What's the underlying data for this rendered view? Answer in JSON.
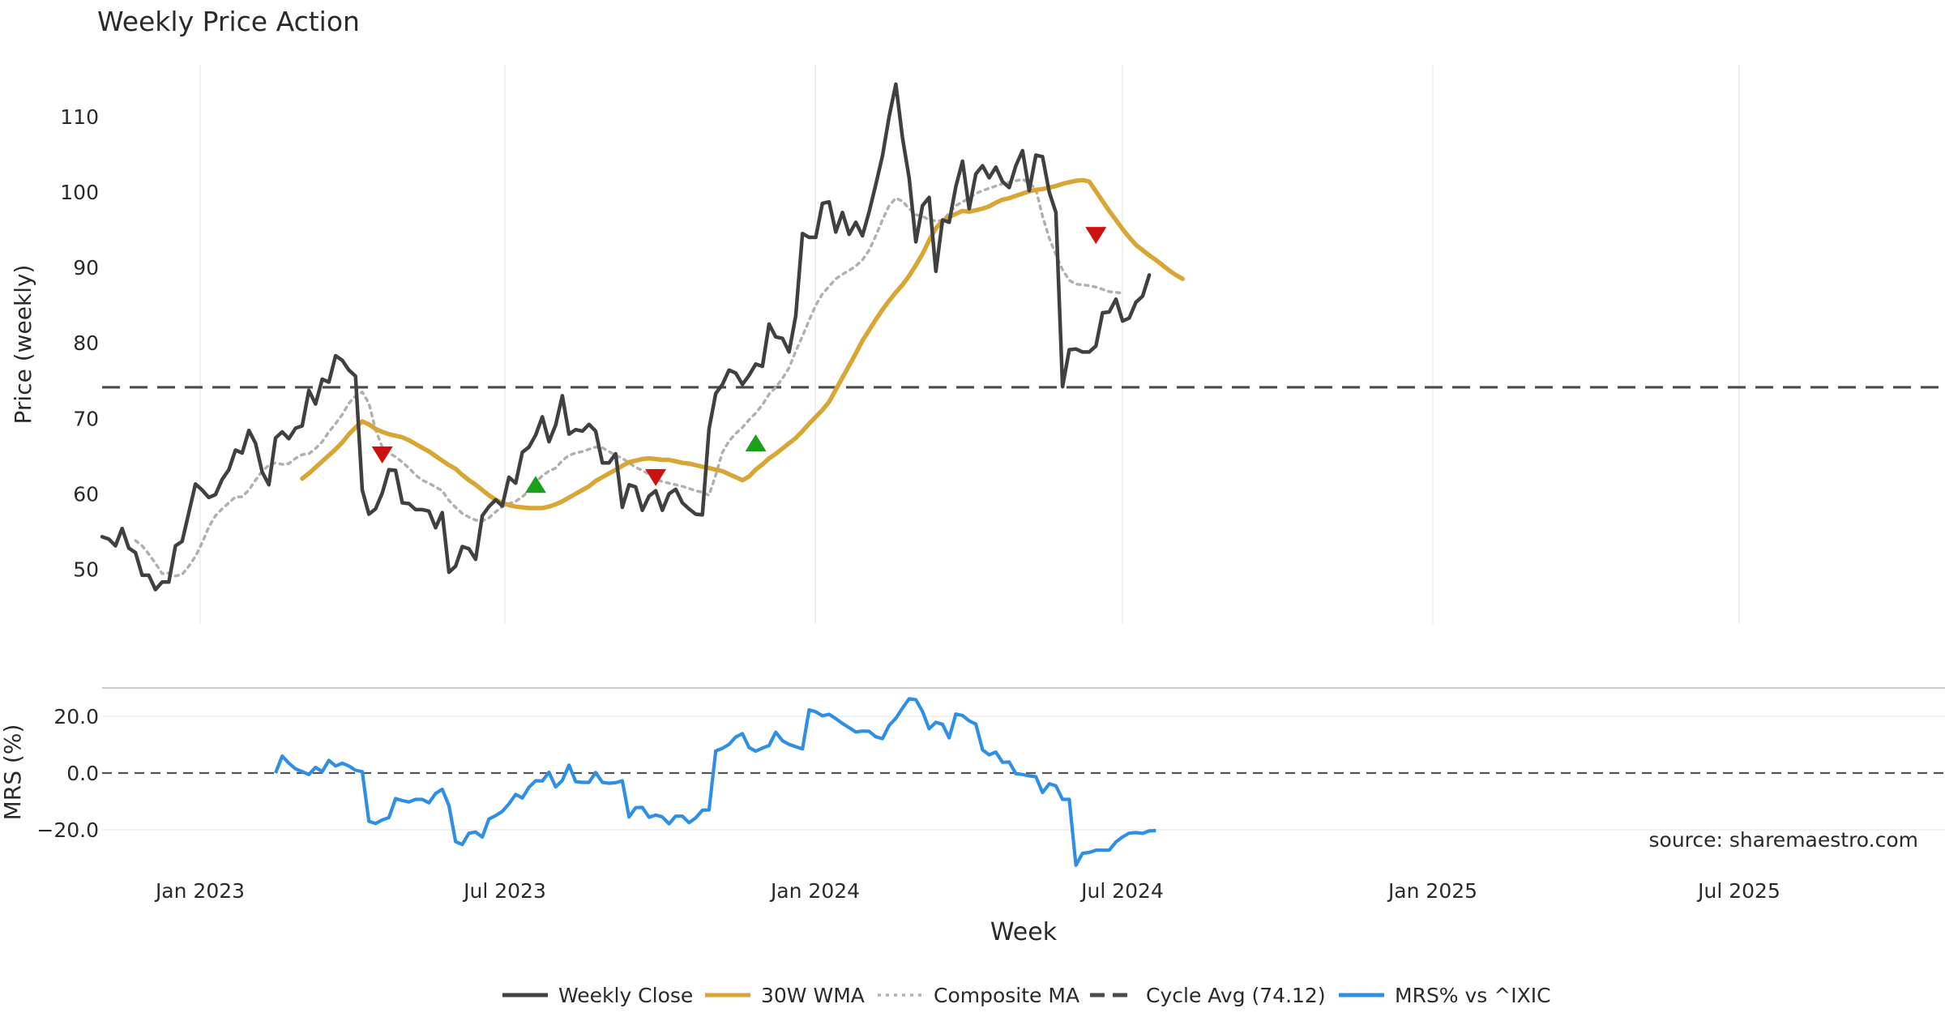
{
  "chart_data": {
    "type": "line",
    "title": "Weekly Price Action",
    "xlabel": "Week",
    "x_ticks": [
      "Jan 2023",
      "Jul 2023",
      "Jan 2024",
      "Jul 2024",
      "Jan 2025",
      "Jul 2025"
    ],
    "price_panel": {
      "ylabel": "Price (weekly)",
      "ylim": [
        43,
        118
      ],
      "y_ticks": [
        50,
        60,
        70,
        80,
        90,
        100,
        110
      ],
      "grid": "x",
      "series": [
        {
          "name": "Weekly Close",
          "color": "#404040",
          "style": "solid",
          "values": [
            54.3,
            54.0,
            53.1,
            55.4,
            52.8,
            52.2,
            49.2,
            49.2,
            47.3,
            48.3,
            48.3,
            53.1,
            53.7,
            57.5,
            61.3,
            60.5,
            59.5,
            59.9,
            61.9,
            63.2,
            65.8,
            65.4,
            68.4,
            66.7,
            62.9,
            61.2,
            67.4,
            68.2,
            67.3,
            68.7,
            69.0,
            73.7,
            71.9,
            75.2,
            74.8,
            78.3,
            77.7,
            76.4,
            75.6,
            60.5,
            57.3,
            58.0,
            60.1,
            63.2,
            63.1,
            58.8,
            58.7,
            57.9,
            57.9,
            57.7,
            55.5,
            57.5,
            49.6,
            50.4,
            53.0,
            52.7,
            51.3,
            57.1,
            58.3,
            59.2,
            58.4,
            62.2,
            61.4,
            65.5,
            66.2,
            67.8,
            70.2,
            66.9,
            69.1,
            73.0,
            67.9,
            68.5,
            68.3,
            69.2,
            68.3,
            64.1,
            64.1,
            65.3,
            58.2,
            61.2,
            60.9,
            57.8,
            59.7,
            60.4,
            57.8,
            60.0,
            60.6,
            58.8,
            58.0,
            57.3,
            57.2,
            68.6,
            73.3,
            74.5,
            76.4,
            76.0,
            74.5,
            75.7,
            77.2,
            76.9,
            82.5,
            80.8,
            80.6,
            78.8,
            83.6,
            94.5,
            94.0,
            94.0,
            98.5,
            98.7,
            94.7,
            97.3,
            94.4,
            96.0,
            94.2,
            97.4,
            101.0,
            104.8,
            110.0,
            114.3,
            107.2,
            101.9,
            93.4,
            98.2,
            99.3,
            89.5,
            96.3,
            96.0,
            100.7,
            104.1,
            97.8,
            102.4,
            103.5,
            101.9,
            103.3,
            101.4,
            100.6,
            103.5,
            105.5,
            100.2,
            104.9,
            104.7,
            100.0,
            97.3,
            74.2,
            79.1,
            79.2,
            78.8,
            78.8,
            79.6,
            84.0,
            84.1,
            85.8,
            82.9,
            83.3,
            85.4,
            86.2,
            89.0
          ]
        },
        {
          "name": "30W WMA",
          "color": "#d8a634",
          "style": "solid",
          "start_week": 30,
          "values": [
            62.0,
            62.7,
            63.5,
            64.3,
            65.1,
            65.9,
            66.8,
            67.9,
            68.8,
            69.6,
            69.2,
            68.6,
            68.2,
            67.9,
            67.7,
            67.5,
            67.1,
            66.6,
            66.1,
            65.6,
            65.0,
            64.4,
            63.8,
            63.3,
            62.5,
            61.8,
            61.2,
            60.5,
            59.8,
            59.2,
            58.8,
            58.5,
            58.3,
            58.2,
            58.1,
            58.1,
            58.1,
            58.3,
            58.6,
            59.0,
            59.5,
            60.0,
            60.5,
            61.0,
            61.7,
            62.2,
            62.7,
            63.2,
            63.7,
            64.2,
            64.4,
            64.6,
            64.7,
            64.6,
            64.5,
            64.5,
            64.3,
            64.1,
            64.0,
            63.8,
            63.6,
            63.4,
            63.2,
            63.0,
            62.6,
            62.2,
            61.8,
            62.3,
            63.2,
            63.9,
            64.7,
            65.3,
            66.0,
            66.7,
            67.4,
            68.3,
            69.3,
            70.2,
            71.1,
            72.2,
            73.8,
            75.4,
            77.0,
            78.6,
            80.3,
            81.7,
            83.1,
            84.4,
            85.6,
            86.7,
            87.7,
            88.9,
            90.3,
            91.8,
            93.6,
            95.2,
            96.2,
            96.7,
            97.1,
            97.5,
            97.4,
            97.6,
            97.8,
            98.1,
            98.6,
            99.0,
            99.2,
            99.5,
            99.8,
            100.1,
            100.3,
            100.4,
            100.6,
            100.8,
            101.1,
            101.3,
            101.5,
            101.6,
            101.4,
            100.1,
            98.8,
            97.5,
            96.3,
            95.1,
            94.0,
            93.0,
            92.3,
            91.6,
            91.0,
            90.3,
            89.6,
            89.0,
            88.5
          ]
        },
        {
          "name": "Composite MA",
          "color": "#b3afaf",
          "style": "dotted",
          "start_week": 5,
          "values": [
            53.8,
            53.1,
            52.0,
            50.8,
            49.4,
            49.5,
            49.1,
            49.3,
            50.4,
            51.7,
            53.5,
            55.6,
            57.1,
            58.0,
            58.8,
            59.6,
            59.6,
            60.5,
            61.8,
            63.0,
            63.8,
            64.1,
            63.9,
            64.0,
            64.7,
            65.2,
            65.3,
            66.0,
            66.9,
            68.2,
            69.3,
            70.5,
            72.0,
            73.0,
            73.5,
            72.0,
            68.5,
            66.2,
            65.4,
            64.9,
            64.2,
            63.4,
            62.5,
            61.8,
            61.4,
            60.9,
            60.4,
            59.1,
            58.2,
            57.4,
            56.9,
            56.5,
            56.4,
            56.8,
            57.6,
            58.3,
            58.7,
            59.0,
            59.6,
            60.4,
            61.5,
            62.4,
            63.0,
            63.4,
            64.4,
            65.1,
            65.4,
            65.6,
            65.9,
            66.2,
            66.1,
            65.6,
            65.1,
            64.7,
            64.1,
            63.5,
            63.1,
            62.6,
            62.0,
            61.6,
            61.4,
            61.2,
            61.0,
            60.7,
            60.4,
            60.2,
            59.8,
            62.5,
            65.5,
            67.0,
            68.0,
            68.8,
            69.8,
            70.7,
            71.8,
            73.2,
            74.1,
            75.3,
            76.7,
            78.9,
            80.9,
            83.0,
            85.0,
            86.5,
            87.5,
            88.5,
            89.1,
            89.6,
            90.2,
            91.0,
            92.3,
            94.2,
            96.3,
            98.2,
            99.2,
            98.8,
            97.8,
            97.0,
            96.8,
            96.3,
            96.2,
            96.2,
            97.2,
            98.2,
            98.7,
            99.2,
            99.8,
            100.2,
            100.5,
            100.8,
            101.1,
            101.3,
            101.5,
            101.7,
            101.2,
            100.4,
            96.8,
            93.9,
            91.7,
            89.7,
            88.3,
            87.8,
            87.7,
            87.6,
            87.4,
            87.1,
            86.8,
            86.7,
            86.6
          ]
        }
      ],
      "reference_line": {
        "name": "Cycle Avg (74.12)",
        "value": 74.12,
        "color": "#4a4a4a",
        "style": "dashed"
      },
      "signals": [
        {
          "type": "sell",
          "week": 42,
          "value": 65.2,
          "color": "#cc1111"
        },
        {
          "type": "buy",
          "week": 65,
          "value": 61.2,
          "color": "#1aa01a"
        },
        {
          "type": "sell",
          "week": 83,
          "value": 62.2,
          "color": "#cc1111"
        },
        {
          "type": "buy",
          "week": 98,
          "value": 66.7,
          "color": "#1aa01a"
        },
        {
          "type": "sell",
          "week": 149,
          "value": 94.3,
          "color": "#cc1111"
        }
      ]
    },
    "mrs_panel": {
      "ylabel": "MRS (%)",
      "ylim": [
        -36,
        31
      ],
      "y_ticks": [
        "20.0",
        "0.0",
        "−20.0"
      ],
      "y_tick_values": [
        20,
        0,
        -20
      ],
      "zero_line": true,
      "series": [
        {
          "name": "MRS% vs ^IXIC",
          "color": "#2f8fe4",
          "style": "solid",
          "start_week": 26,
          "values": [
            0.0,
            6.0,
            3.5,
            1.5,
            0.5,
            -0.5,
            2.0,
            0.5,
            4.5,
            2.5,
            3.5,
            2.5,
            1.0,
            0.5,
            -17.0,
            -17.8,
            -16.5,
            -15.7,
            -9.0,
            -9.7,
            -10.2,
            -9.3,
            -9.3,
            -10.5,
            -7.2,
            -5.7,
            -11.5,
            -24.2,
            -25.2,
            -21.2,
            -20.8,
            -22.6,
            -16.2,
            -15.0,
            -13.5,
            -10.9,
            -7.5,
            -8.8,
            -5.0,
            -2.7,
            -2.8,
            0.3,
            -4.9,
            -2.6,
            2.8,
            -3.0,
            -3.3,
            -3.3,
            0.2,
            -3.3,
            -3.6,
            -3.4,
            -2.7,
            -15.5,
            -12.2,
            -12.1,
            -15.6,
            -14.8,
            -15.5,
            -17.9,
            -15.2,
            -15.2,
            -17.5,
            -15.8,
            -13.1,
            -13.0,
            7.8,
            8.7,
            10.1,
            12.7,
            13.9,
            9.0,
            7.7,
            8.8,
            9.7,
            14.4,
            11.4,
            10.1,
            9.3,
            8.5,
            22.3,
            21.6,
            20.2,
            20.7,
            19.2,
            17.5,
            16.0,
            14.5,
            14.8,
            14.7,
            12.8,
            12.1,
            16.8,
            19.3,
            22.9,
            26.2,
            25.9,
            21.7,
            15.6,
            17.9,
            17.2,
            12.4,
            20.8,
            20.3,
            18.4,
            17.3,
            8.2,
            6.4,
            7.4,
            3.8,
            3.9,
            -0.2,
            -0.5,
            -1.0,
            -1.3,
            -6.9,
            -3.8,
            -4.5,
            -9.3,
            -9.3,
            -32.5,
            -28.3,
            -28.0,
            -27.2,
            -27.2,
            -27.2,
            -24.3,
            -22.5,
            -21.2,
            -21.0,
            -21.3,
            -20.4,
            -20.3
          ]
        }
      ],
      "annotation": "source: sharemaestro.com"
    },
    "legend": {
      "placement": "bottom-center",
      "entries": [
        {
          "label": "Weekly Close",
          "color": "#404040",
          "style": "solid"
        },
        {
          "label": "30W WMA",
          "color": "#d8a634",
          "style": "solid"
        },
        {
          "label": "Composite MA",
          "color": "#b3afaf",
          "style": "dotted"
        },
        {
          "label": "Cycle Avg (74.12)",
          "color": "#4a4a4a",
          "style": "dashed"
        },
        {
          "label": "MRS% vs ^IXIC",
          "color": "#2f8fe4",
          "style": "solid"
        }
      ]
    }
  }
}
